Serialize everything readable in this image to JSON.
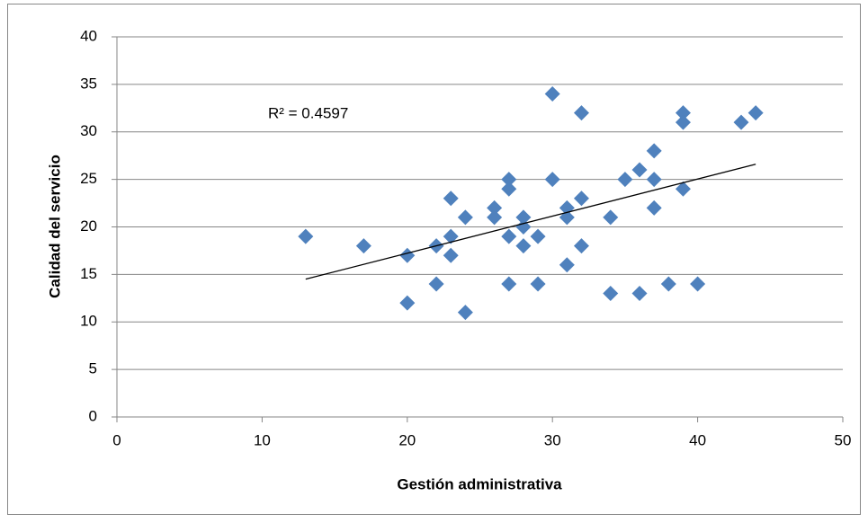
{
  "chart_data": {
    "type": "scatter",
    "x_label": "Gestión administrativa",
    "y_label": "Calidad del servicio",
    "annotation": "R² = 0.4597",
    "color": "#4f81bd",
    "grid": true,
    "xlim": [
      0,
      50
    ],
    "xticks": [
      0,
      10,
      20,
      30,
      40,
      50
    ],
    "ylim": [
      0,
      40
    ],
    "yticks": [
      0,
      5,
      10,
      15,
      20,
      25,
      30,
      35,
      40
    ],
    "x": [
      13,
      17,
      20,
      20,
      22,
      22,
      23,
      23,
      23,
      24,
      24,
      26,
      26,
      27,
      27,
      27,
      27,
      28,
      28,
      28,
      29,
      29,
      30,
      30,
      31,
      31,
      31,
      32,
      32,
      32,
      34,
      34,
      35,
      36,
      36,
      37,
      37,
      37,
      38,
      39,
      39,
      39,
      40,
      43,
      44
    ],
    "values": [
      19,
      18,
      17,
      12,
      18,
      14,
      23,
      19,
      17,
      21,
      11,
      22,
      21,
      25,
      24,
      19,
      14,
      21,
      20,
      18,
      19,
      14,
      34,
      25,
      22,
      21,
      16,
      32,
      23,
      18,
      21,
      13,
      25,
      26,
      13,
      28,
      25,
      22,
      14,
      32,
      31,
      24,
      14,
      31,
      32
    ],
    "trendline": {
      "x": [
        13,
        44
      ],
      "y": [
        14.5,
        26.6
      ]
    }
  }
}
